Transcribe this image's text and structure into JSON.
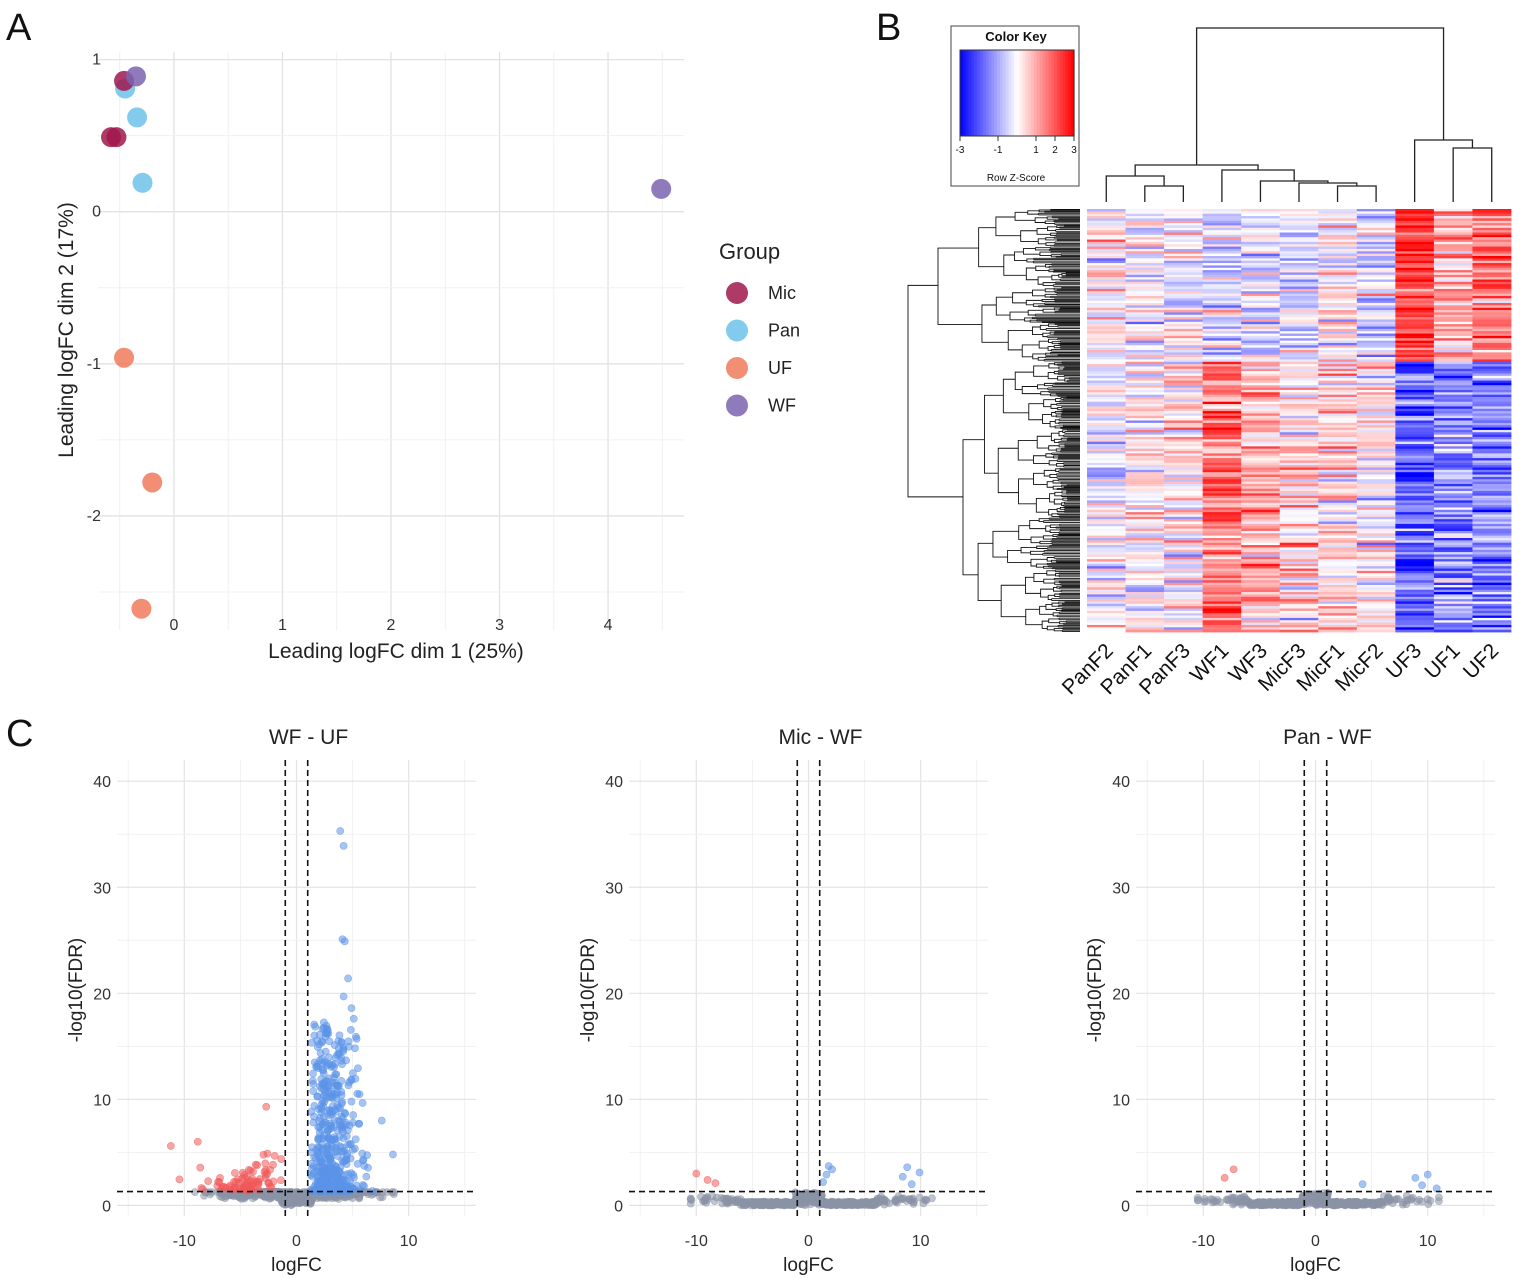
{
  "panels": {
    "a": {
      "letter": "A"
    },
    "b": {
      "letter": "B"
    },
    "c": {
      "letter": "C"
    }
  },
  "chart_data": [
    {
      "type": "scatter",
      "title": "",
      "xlabel": "Leading logFC dim 1 (25%)",
      "ylabel": "Leading logFC dim 2 (17%)",
      "xlim": [
        -0.7,
        4.7
      ],
      "ylim": [
        -2.75,
        1.05
      ],
      "xticks": [
        "0",
        "1",
        "2",
        "3",
        "4"
      ],
      "yticks": [
        "1",
        "0",
        "-1",
        "-2"
      ],
      "legend": {
        "title": "Group",
        "position": "right",
        "entries": [
          {
            "label": "Mic",
            "color": "#a0184e"
          },
          {
            "label": "Pan",
            "color": "#6cc2ea"
          },
          {
            "label": "UF",
            "color": "#f07a5a"
          },
          {
            "label": "WF",
            "color": "#7b64b0"
          }
        ]
      },
      "series": [
        {
          "name": "Mic",
          "color": "#a0184e",
          "points": [
            [
              -0.46,
              0.86
            ],
            [
              -0.58,
              0.49
            ],
            [
              -0.53,
              0.49
            ]
          ]
        },
        {
          "name": "Pan",
          "color": "#6cc2ea",
          "points": [
            [
              -0.45,
              0.81
            ],
            [
              -0.34,
              0.62
            ],
            [
              -0.29,
              0.19
            ]
          ]
        },
        {
          "name": "UF",
          "color": "#f07a5a",
          "points": [
            [
              -0.46,
              -0.96
            ],
            [
              -0.2,
              -1.78
            ],
            [
              -0.3,
              -2.61
            ]
          ]
        },
        {
          "name": "WF",
          "color": "#7b64b0",
          "points": [
            [
              -0.35,
              0.89
            ],
            [
              4.49,
              0.15
            ]
          ]
        }
      ]
    },
    {
      "type": "heatmap",
      "color_key": {
        "title": "Color Key",
        "ticks": [
          "-3",
          "-1",
          "1",
          "2",
          "3"
        ],
        "label": "Row Z-Score",
        "range": [
          -3,
          3
        ]
      },
      "columns": [
        "PanF2",
        "PanF1",
        "PanF3",
        "WF1",
        "WF3",
        "MicF3",
        "MicF1",
        "MicF2",
        "UF3",
        "UF1",
        "UF2"
      ],
      "column_profile_upper": [
        0.1,
        -0.2,
        0.0,
        -0.5,
        -0.4,
        -0.3,
        0.2,
        -0.4,
        2.3,
        1.0,
        1.6
      ],
      "column_profile_lower": [
        -0.2,
        0.1,
        0.3,
        1.6,
        0.9,
        0.5,
        0.4,
        0.2,
        -1.8,
        -1.4,
        -1.5
      ],
      "row_count": 180
    },
    {
      "type": "scatter",
      "title": "WF - UF",
      "xlabel": "logFC",
      "ylabel": "-log10(FDR)",
      "xlim": [
        -16,
        16
      ],
      "ylim": [
        -1,
        42
      ],
      "xticks": [
        "-10",
        "0",
        "10"
      ],
      "yticks": [
        "40",
        "30",
        "20",
        "10",
        "0"
      ],
      "thresholds": {
        "logfc": [
          -1,
          1
        ],
        "fdr_line": 1.3
      },
      "n_down": 84,
      "n_up": 520,
      "n_ns": 820,
      "highlights": [
        [
          3.9,
          35.3
        ],
        [
          4.2,
          33.9
        ],
        [
          4.1,
          25.1
        ],
        [
          4.3,
          24.9
        ],
        [
          4.6,
          21.4
        ],
        [
          4.2,
          19.7
        ],
        [
          4.9,
          18.6
        ],
        [
          5.1,
          17.6
        ],
        [
          2.6,
          14.5
        ],
        [
          7.6,
          8.0
        ],
        [
          -2.7,
          9.3
        ],
        [
          -8.8,
          6.0
        ],
        [
          -11.2,
          5.6
        ],
        [
          8.6,
          4.8
        ]
      ]
    },
    {
      "type": "scatter",
      "title": "Mic - WF",
      "xlabel": "logFC",
      "ylabel": "-log10(FDR)",
      "xlim": [
        -16,
        16
      ],
      "ylim": [
        -1,
        42
      ],
      "xticks": [
        "-10",
        "0",
        "10"
      ],
      "yticks": [
        "40",
        "30",
        "20",
        "10",
        "0"
      ],
      "thresholds": {
        "logfc": [
          -1,
          1
        ],
        "fdr_line": 1.3
      },
      "down_points": [
        [
          -10.0,
          3.0
        ],
        [
          -9.0,
          2.4
        ],
        [
          -8.3,
          2.1
        ]
      ],
      "up_points": [
        [
          1.8,
          3.7
        ],
        [
          2.1,
          3.4
        ],
        [
          1.6,
          2.9
        ],
        [
          1.3,
          2.2
        ],
        [
          8.8,
          3.6
        ],
        [
          9.9,
          3.1
        ],
        [
          8.4,
          2.7
        ],
        [
          9.2,
          2.0
        ]
      ],
      "n_ns": 560
    },
    {
      "type": "scatter",
      "title": "Pan - WF",
      "xlabel": "logFC",
      "ylabel": "-log10(FDR)",
      "xlim": [
        -16,
        16
      ],
      "ylim": [
        -1,
        42
      ],
      "xticks": [
        "-10",
        "0",
        "10"
      ],
      "yticks": [
        "40",
        "30",
        "20",
        "10",
        "0"
      ],
      "thresholds": {
        "logfc": [
          -1,
          1
        ],
        "fdr_line": 1.3
      },
      "down_points": [
        [
          -7.3,
          3.4
        ],
        [
          -8.1,
          2.6
        ]
      ],
      "up_points": [
        [
          10.0,
          2.9
        ],
        [
          8.9,
          2.6
        ],
        [
          10.8,
          1.6
        ],
        [
          9.5,
          1.9
        ],
        [
          4.2,
          2.0
        ]
      ],
      "n_ns": 560
    }
  ]
}
